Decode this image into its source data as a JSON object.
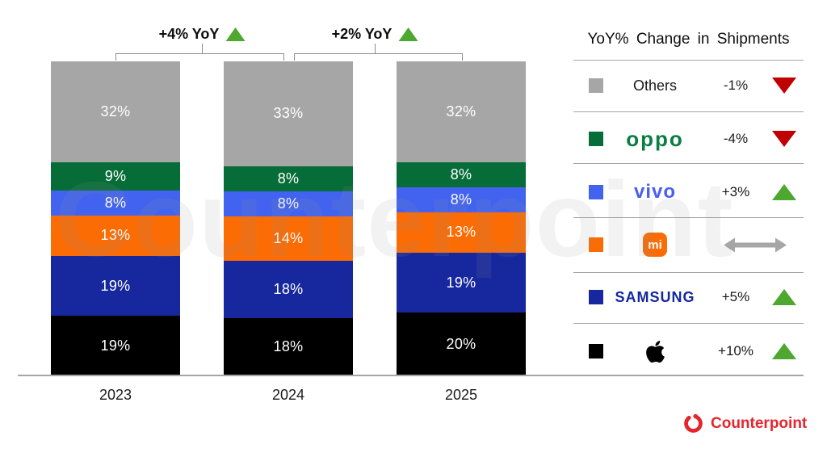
{
  "chart_data": {
    "type": "bar",
    "stacked": true,
    "categories": [
      "2023",
      "2024",
      "2025"
    ],
    "series": [
      {
        "name": "Apple",
        "color": "#000000",
        "values": [
          19,
          18,
          20
        ]
      },
      {
        "name": "Samsung",
        "color": "#17289e",
        "values": [
          19,
          18,
          19
        ]
      },
      {
        "name": "Xiaomi",
        "color": "#fb6c05",
        "values": [
          13,
          14,
          13
        ]
      },
      {
        "name": "vivo",
        "color": "#4263ef",
        "values": [
          8,
          8,
          8
        ]
      },
      {
        "name": "OPPO",
        "color": "#076d38",
        "values": [
          9,
          8,
          8
        ]
      },
      {
        "name": "Others",
        "color": "#a6a6a6",
        "values": [
          32,
          33,
          32
        ]
      }
    ],
    "value_suffix": "%",
    "ylim": [
      0,
      100
    ],
    "grid": false,
    "legend_position": "right",
    "annotations": [
      {
        "label": "+4% YoY",
        "direction": "up",
        "between": [
          "2023",
          "2024"
        ]
      },
      {
        "label": "+2% YoY",
        "direction": "up",
        "between": [
          "2024",
          "2025"
        ]
      }
    ]
  },
  "legend": {
    "title": "YoY% Change in Shipments",
    "up_color": "#4ea72e",
    "down_color": "#c00000",
    "flat_color": "#a6a6a6",
    "rows": [
      {
        "label": "Others",
        "logo": "text",
        "logo_color": "#1a1a1a",
        "swatch": "#a6a6a6",
        "change": "-1%",
        "direction": "down"
      },
      {
        "label": "oppo",
        "logo": "oppo",
        "logo_color": "#0b7c42",
        "swatch": "#076d38",
        "change": "-4%",
        "direction": "down"
      },
      {
        "label": "vivo",
        "logo": "vivo",
        "logo_color": "#4a5ff0",
        "swatch": "#4263ef",
        "change": "+3%",
        "direction": "up"
      },
      {
        "label": "mi",
        "logo": "xiaomi",
        "logo_color": "#fb6c05",
        "swatch": "#fb6c05",
        "change": "",
        "direction": "flat"
      },
      {
        "label": "SAMSUNG",
        "logo": "samsung",
        "logo_color": "#1428a0",
        "swatch": "#17289e",
        "change": "+5%",
        "direction": "up"
      },
      {
        "label": "Apple",
        "logo": "apple",
        "logo_color": "#000000",
        "swatch": "#000000",
        "change": "+10%",
        "direction": "up"
      }
    ]
  },
  "footer": {
    "brand": "Counterpoint",
    "color": "#e5252e"
  },
  "watermark": "Counterpoint"
}
